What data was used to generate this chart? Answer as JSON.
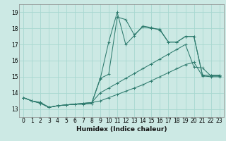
{
  "title": "",
  "xlabel": "Humidex (Indice chaleur)",
  "background_color": "#cce9e4",
  "grid_color": "#a8d8d0",
  "line_color": "#2e7b6e",
  "x_values": [
    0,
    1,
    2,
    3,
    4,
    5,
    6,
    7,
    8,
    9,
    10,
    11,
    12,
    13,
    14,
    15,
    16,
    17,
    18,
    19,
    20,
    21,
    22,
    23
  ],
  "series": [
    [
      13.7,
      13.5,
      13.4,
      13.1,
      13.2,
      13.25,
      13.3,
      13.3,
      13.35,
      14.85,
      17.15,
      19.0,
      17.0,
      17.55,
      18.15,
      18.05,
      17.9,
      17.15,
      17.15,
      17.5,
      17.5,
      15.1,
      15.1,
      15.1
    ],
    [
      13.7,
      13.5,
      13.4,
      13.1,
      13.2,
      13.25,
      13.3,
      13.3,
      13.35,
      14.9,
      15.15,
      18.7,
      18.55,
      17.6,
      18.1,
      18.0,
      17.95,
      17.15,
      17.15,
      17.5,
      17.5,
      15.1,
      15.1,
      15.1
    ],
    [
      13.7,
      13.5,
      13.35,
      13.1,
      13.2,
      13.25,
      13.3,
      13.35,
      13.4,
      14.0,
      14.3,
      14.6,
      14.9,
      15.2,
      15.5,
      15.8,
      16.1,
      16.4,
      16.7,
      17.0,
      15.6,
      15.55,
      15.05,
      15.05
    ],
    [
      13.7,
      13.5,
      13.35,
      13.1,
      13.2,
      13.25,
      13.3,
      13.35,
      13.4,
      13.5,
      13.7,
      13.9,
      14.1,
      14.3,
      14.5,
      14.75,
      15.0,
      15.25,
      15.5,
      15.75,
      15.9,
      15.05,
      15.0,
      15.0
    ]
  ],
  "ylim": [
    12.5,
    19.5
  ],
  "xlim": [
    -0.5,
    23.5
  ],
  "yticks": [
    13,
    14,
    15,
    16,
    17,
    18,
    19
  ],
  "xticks": [
    0,
    1,
    2,
    3,
    4,
    5,
    6,
    7,
    8,
    9,
    10,
    11,
    12,
    13,
    14,
    15,
    16,
    17,
    18,
    19,
    20,
    21,
    22,
    23
  ],
  "xlabel_fontsize": 6.5,
  "tick_fontsize": 5.5
}
